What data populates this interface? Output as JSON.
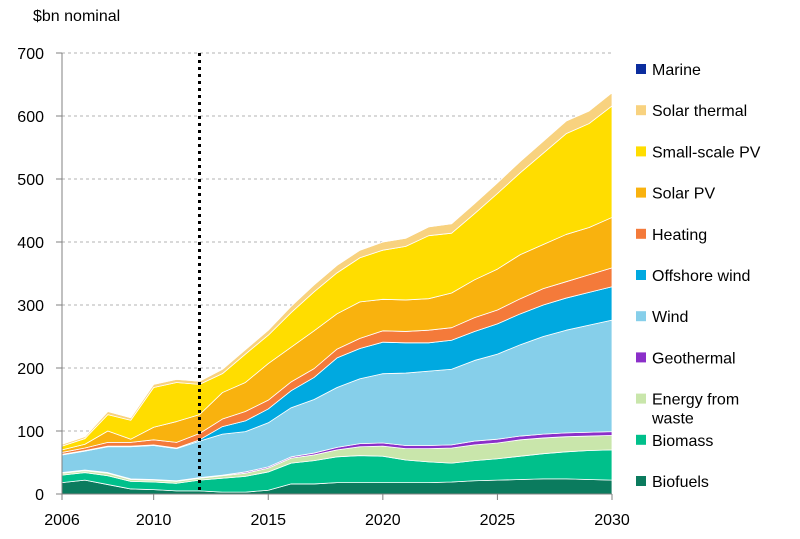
{
  "chart_data": {
    "type": "area",
    "stacked": true,
    "unit_label": "$bn nominal",
    "x": [
      2006,
      2007,
      2008,
      2009,
      2010,
      2011,
      2012,
      2013,
      2014,
      2015,
      2016,
      2017,
      2018,
      2019,
      2020,
      2021,
      2022,
      2023,
      2024,
      2025,
      2026,
      2027,
      2028,
      2029,
      2030
    ],
    "xticks": [
      2006,
      2010,
      2015,
      2020,
      2025,
      2030
    ],
    "ylim": [
      0,
      700
    ],
    "yticks": [
      0,
      100,
      200,
      300,
      400,
      500,
      600,
      700
    ],
    "grid": "horizontal dashed",
    "legend_position": "right",
    "reference_line": {
      "x": 2012,
      "style": "dotted"
    },
    "series": [
      {
        "name": "Biofuels",
        "color": "#0b7b5e",
        "values": [
          18,
          22,
          15,
          8,
          7,
          5,
          5,
          3,
          3,
          6,
          16,
          16,
          18,
          18,
          18,
          18,
          18,
          19,
          21,
          22,
          23,
          24,
          24,
          23,
          22
        ]
      },
      {
        "name": "Biomass",
        "color": "#00c08b",
        "values": [
          12,
          12,
          14,
          12,
          12,
          12,
          17,
          22,
          25,
          29,
          33,
          37,
          41,
          43,
          42,
          36,
          33,
          30,
          32,
          34,
          37,
          40,
          43,
          46,
          48
        ]
      },
      {
        "name": "Energy from waste",
        "color": "#c9e6ab",
        "values": [
          3,
          3,
          4,
          3,
          3,
          3,
          3,
          4,
          5,
          6,
          8,
          9,
          11,
          14,
          16,
          18,
          21,
          24,
          25,
          25,
          26,
          25,
          24,
          23,
          23
        ]
      },
      {
        "name": "Geothermal",
        "color": "#8b2fc9",
        "values": [
          1,
          1,
          1,
          1,
          1,
          1,
          1,
          1,
          2,
          2,
          2,
          3,
          4,
          5,
          5,
          5,
          5,
          5,
          6,
          6,
          6,
          6,
          6,
          6,
          6
        ]
      },
      {
        "name": "Wind",
        "color": "#86cfea",
        "values": [
          28,
          30,
          41,
          51,
          54,
          51,
          58,
          65,
          64,
          70,
          78,
          85,
          95,
          103,
          110,
          115,
          118,
          120,
          128,
          135,
          145,
          155,
          163,
          170,
          177
        ]
      },
      {
        "name": "Offshore wind",
        "color": "#00a9e0",
        "values": [
          1,
          1,
          1,
          1,
          1,
          1,
          2,
          12,
          17,
          22,
          27,
          35,
          47,
          48,
          50,
          48,
          45,
          46,
          46,
          48,
          49,
          50,
          51,
          52,
          53
        ]
      },
      {
        "name": "Heating",
        "color": "#f47a3a",
        "values": [
          3,
          4,
          6,
          6,
          8,
          9,
          10,
          12,
          15,
          14,
          14,
          14,
          14,
          16,
          18,
          18,
          20,
          20,
          22,
          22,
          24,
          26,
          26,
          28,
          30
        ]
      },
      {
        "name": "Solar PV",
        "color": "#f9b20e",
        "values": [
          4,
          6,
          18,
          5,
          20,
          33,
          30,
          42,
          46,
          58,
          55,
          60,
          56,
          58,
          50,
          50,
          50,
          55,
          60,
          65,
          70,
          70,
          75,
          75,
          80
        ]
      },
      {
        "name": "Small-scale PV",
        "color": "#ffdd00",
        "values": [
          6,
          9,
          26,
          30,
          63,
          62,
          48,
          30,
          45,
          45,
          55,
          62,
          65,
          70,
          78,
          85,
          100,
          95,
          105,
          120,
          130,
          145,
          160,
          165,
          177
        ]
      },
      {
        "name": "Solar thermal",
        "color": "#f8d27f",
        "values": [
          3,
          3,
          5,
          4,
          5,
          5,
          5,
          7,
          7,
          8,
          10,
          11,
          12,
          12,
          13,
          13,
          14,
          15,
          16,
          17,
          18,
          19,
          20,
          20,
          21
        ]
      },
      {
        "name": "Marine",
        "color": "#0b2d9e",
        "values": [
          0,
          0,
          0,
          0,
          0,
          0,
          0,
          0,
          0,
          0,
          0,
          0,
          0,
          0,
          0,
          0,
          0,
          0,
          0,
          0,
          0,
          0,
          0,
          0,
          0
        ]
      }
    ],
    "legend_order": [
      "Marine",
      "Solar thermal",
      "Small-scale PV",
      "Solar PV",
      "Heating",
      "Offshore wind",
      "Wind",
      "Geothermal",
      "Energy from waste",
      "Biomass",
      "Biofuels"
    ]
  }
}
